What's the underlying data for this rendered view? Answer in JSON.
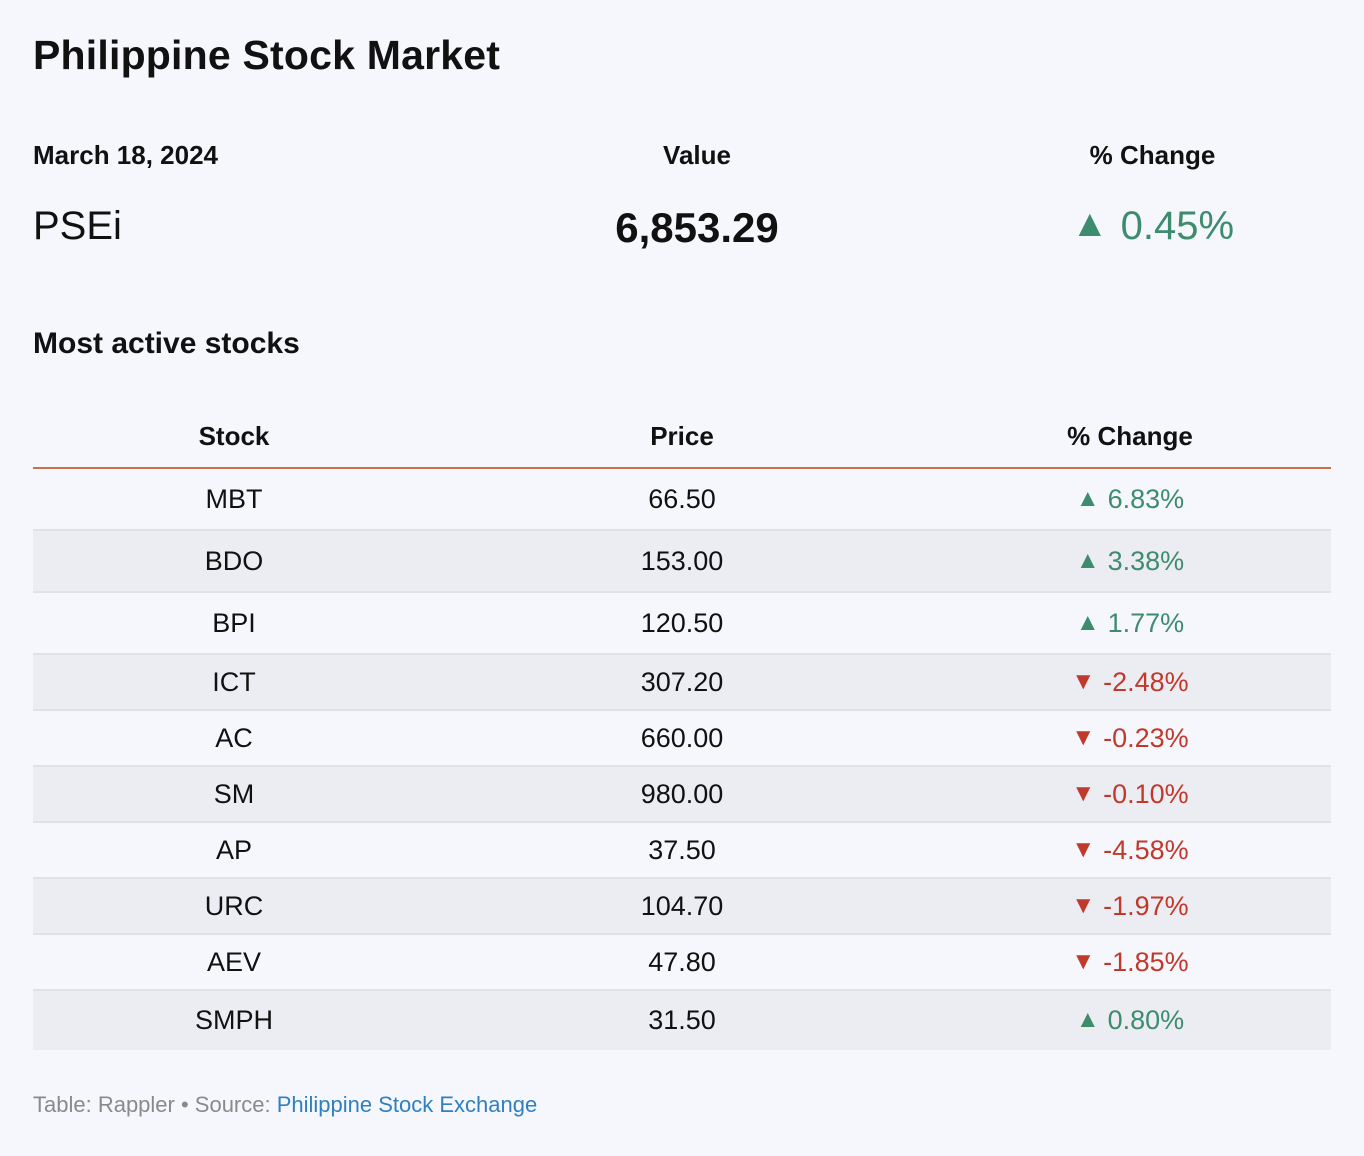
{
  "title": "Philippine Stock Market",
  "summary": {
    "date_label": "March 18, 2024",
    "value_label": "Value",
    "change_label": "% Change",
    "index_name": "PSEi",
    "index_value": "6,853.29",
    "index_change": "0.45%",
    "index_direction": "up"
  },
  "subtitle": "Most active stocks",
  "table": {
    "headers": [
      "Stock",
      "Price",
      "% Change"
    ],
    "rows": [
      {
        "stock": "MBT",
        "price": "66.50",
        "change": "6.83%",
        "direction": "up"
      },
      {
        "stock": "BDO",
        "price": "153.00",
        "change": "3.38%",
        "direction": "up"
      },
      {
        "stock": "BPI",
        "price": "120.50",
        "change": "1.77%",
        "direction": "up"
      },
      {
        "stock": "ICT",
        "price": "307.20",
        "change": "-2.48%",
        "direction": "down"
      },
      {
        "stock": "AC",
        "price": "660.00",
        "change": "-0.23%",
        "direction": "down"
      },
      {
        "stock": "SM",
        "price": "980.00",
        "change": "-0.10%",
        "direction": "down"
      },
      {
        "stock": "AP",
        "price": "37.50",
        "change": "-4.58%",
        "direction": "down"
      },
      {
        "stock": "URC",
        "price": "104.70",
        "change": "-1.97%",
        "direction": "down"
      },
      {
        "stock": "AEV",
        "price": "47.80",
        "change": "-1.85%",
        "direction": "down"
      },
      {
        "stock": "SMPH",
        "price": "31.50",
        "change": "0.80%",
        "direction": "up"
      }
    ]
  },
  "footer": {
    "prefix": "Table: Rappler • Source: ",
    "source_link": "Philippine Stock Exchange"
  },
  "colors": {
    "up": "#3d8c6e",
    "down": "#c0392b",
    "header_rule": "#c8704a",
    "link": "#2f7fc1"
  },
  "icons": {
    "up": "triangle-up-icon",
    "down": "triangle-down-icon"
  }
}
